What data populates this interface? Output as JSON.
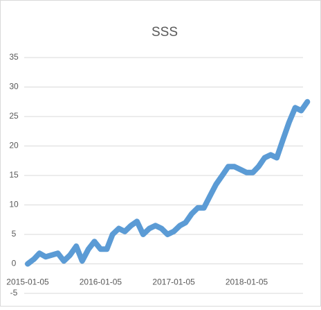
{
  "chart_data": {
    "type": "line",
    "title": "SSS",
    "x": [
      "2015-01-05",
      "2015-02-05",
      "2015-03-05",
      "2015-04-05",
      "2015-05-05",
      "2015-06-05",
      "2015-07-05",
      "2015-08-05",
      "2015-09-05",
      "2015-10-05",
      "2015-11-05",
      "2015-12-05",
      "2016-01-05",
      "2016-02-05",
      "2016-03-05",
      "2016-04-05",
      "2016-05-05",
      "2016-06-05",
      "2016-07-05",
      "2016-08-05",
      "2016-09-05",
      "2016-10-05",
      "2016-11-05",
      "2016-12-05",
      "2017-01-05",
      "2017-02-05",
      "2017-03-05",
      "2017-04-05",
      "2017-05-05",
      "2017-06-05",
      "2017-07-05",
      "2017-08-05",
      "2017-09-05",
      "2017-10-05",
      "2017-11-05",
      "2017-12-05",
      "2018-01-05",
      "2018-02-05",
      "2018-03-05",
      "2018-04-05",
      "2018-05-05",
      "2018-06-05",
      "2018-07-05",
      "2018-08-05",
      "2018-09-05",
      "2018-10-05",
      "2018-11-05"
    ],
    "series": [
      {
        "name": "SSS",
        "color": "#5b9bd5",
        "values": [
          0,
          0.8,
          1.8,
          1.2,
          1.5,
          1.8,
          0.5,
          1.5,
          3,
          0.5,
          2.5,
          3.8,
          2.5,
          2.5,
          5,
          6,
          5.5,
          6.5,
          7.2,
          5,
          6,
          6.5,
          6,
          5,
          5.5,
          6.5,
          7,
          8.5,
          9.5,
          9.5,
          11.5,
          13.5,
          15,
          16.5,
          16.5,
          16,
          15.5,
          15.5,
          16.5,
          18,
          18.5,
          18,
          21,
          24,
          26.5,
          26,
          27.5
        ]
      }
    ],
    "xlim": [
      "2015-01-05",
      "2018-12-05"
    ],
    "xticks": [
      "2015-01-05",
      "2016-01-05",
      "2017-01-05",
      "2018-01-05"
    ],
    "ylim": [
      -5,
      35
    ],
    "yticks": [
      -5,
      0,
      5,
      10,
      15,
      20,
      25,
      30,
      35
    ],
    "grid": true
  }
}
